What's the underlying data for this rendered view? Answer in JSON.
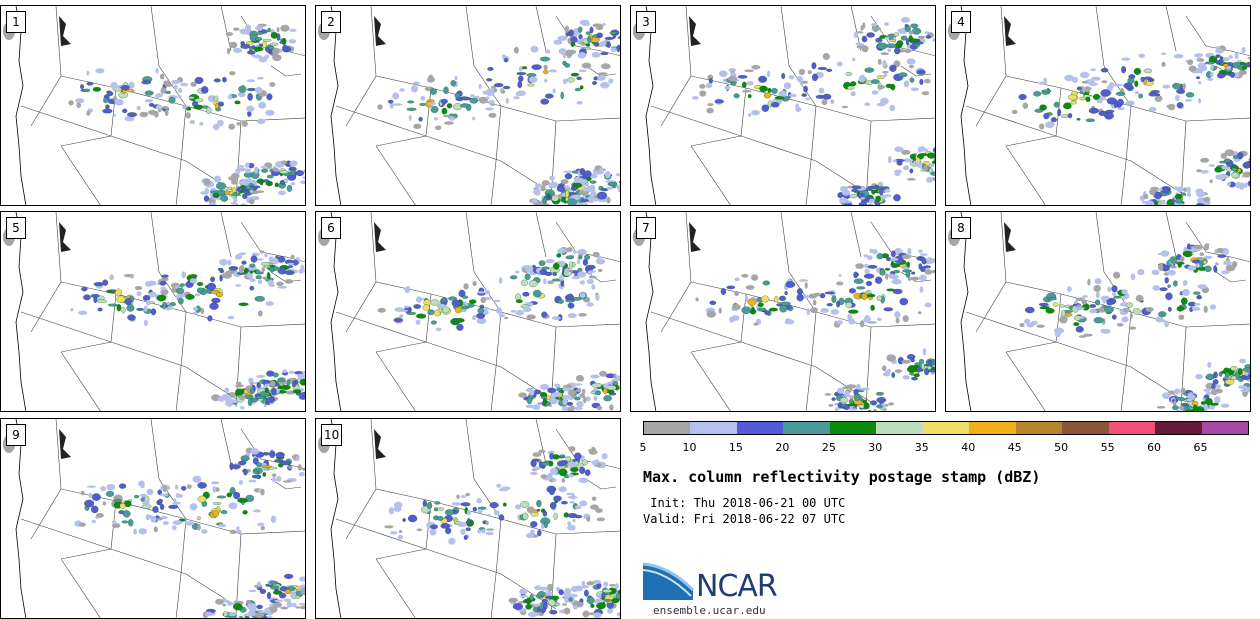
{
  "panels": [
    {
      "label": "1"
    },
    {
      "label": "2"
    },
    {
      "label": "3"
    },
    {
      "label": "4"
    },
    {
      "label": "5"
    },
    {
      "label": "6"
    },
    {
      "label": "7"
    },
    {
      "label": "8"
    },
    {
      "label": "9"
    },
    {
      "label": "10"
    }
  ],
  "colorbar": {
    "colors": [
      "#a6a6a6",
      "#b5c1ec",
      "#545ad7",
      "#4a9a9b",
      "#0b8a0b",
      "#bedcbe",
      "#f0dc64",
      "#f0b01e",
      "#b8852e",
      "#8c5538",
      "#f0507a",
      "#651a3a",
      "#a64aa6"
    ],
    "ticks": [
      "5",
      "10",
      "15",
      "20",
      "25",
      "30",
      "35",
      "40",
      "45",
      "50",
      "55",
      "60",
      "65"
    ]
  },
  "title": "Max. column reflectivity postage stamp (dBZ)",
  "init": " Init: Thu 2018-06-21 00 UTC",
  "valid": "Valid: Fri 2018-06-22 07 UTC",
  "logo": {
    "text": "NCAR",
    "site": "ensemble.ucar.edu",
    "color": "#1f6fb5"
  }
}
